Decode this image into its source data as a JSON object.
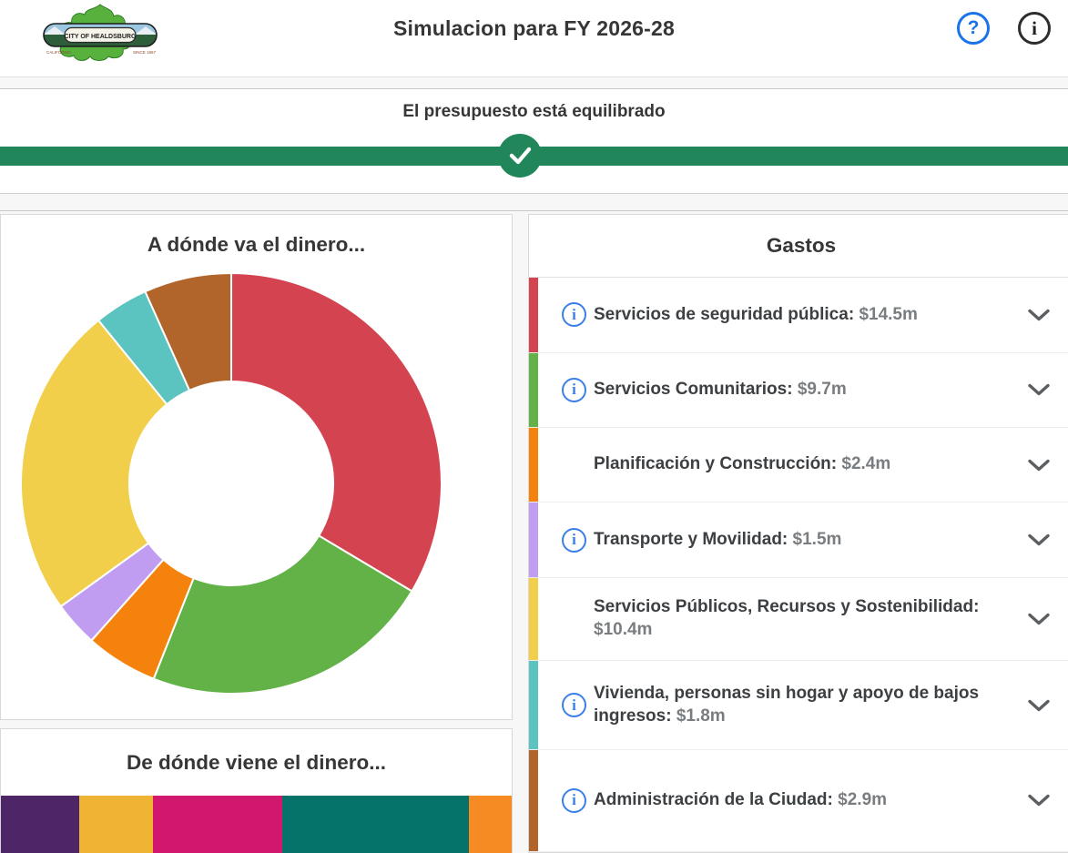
{
  "header": {
    "title": "Simulacion para FY 2026-28",
    "help_label": "?",
    "info_label": "i",
    "logo": {
      "badge_text": "CITY OF HEALDSBURG",
      "left_small_text": "CALIFORNIA",
      "right_small_text": "SINCE 1867"
    }
  },
  "status": {
    "message": "El presupuesto está equilibrado",
    "bar_color": "#21875a",
    "thumb_position_pct": 48.7
  },
  "spending_card": {
    "title": "A dónde va el dinero..."
  },
  "revenue_card": {
    "title": "De dónde viene el dinero..."
  },
  "expenses": {
    "title": "Gastos",
    "items": [
      {
        "label": "Servicios de seguridad pública:",
        "value": "$14.5m",
        "color": "#d44450",
        "has_info_icon": true
      },
      {
        "label": "Servicios Comunitarios:",
        "value": "$9.7m",
        "color": "#63b248",
        "has_info_icon": true
      },
      {
        "label": "Planificación y Construcción:",
        "value": "$2.4m",
        "color": "#f5820d",
        "has_info_icon": false
      },
      {
        "label": "Transporte y Movilidad:",
        "value": "$1.5m",
        "color": "#c19df1",
        "has_info_icon": true
      },
      {
        "label": "Servicios Públicos, Recursos y Sostenibilidad:",
        "value": "$10.4m",
        "color": "#f1cf4b",
        "has_info_icon": false
      },
      {
        "label": "Vivienda, personas sin hogar y apoyo de bajos ingresos:",
        "value": "$1.8m",
        "color": "#5bc4c0",
        "has_info_icon": true
      },
      {
        "label": "Administración de la Ciudad:",
        "value": "$2.9m",
        "color": "#b2652a",
        "has_info_icon": true
      }
    ]
  },
  "chart_data": [
    {
      "type": "pie",
      "subtype": "donut",
      "title": "A dónde va el dinero...",
      "labels": [
        "Servicios de seguridad pública",
        "Servicios Comunitarios",
        "Planificación y Construcción",
        "Transporte y Movilidad",
        "Servicios Públicos, Recursos y Sostenibilidad",
        "Vivienda, personas sin hogar y apoyo de bajos ingresos",
        "Administración de la Ciudad"
      ],
      "values": [
        14.5,
        9.7,
        2.4,
        1.5,
        10.4,
        1.8,
        2.9
      ],
      "unit": "millions USD",
      "colors": [
        "#d44450",
        "#63b248",
        "#f5820d",
        "#c19df1",
        "#f1cf4b",
        "#5bc4c0",
        "#b2652a"
      ],
      "start_angle_deg": 0,
      "direction": "clockwise",
      "inner_radius_ratio": 0.485,
      "legend_position": "none"
    },
    {
      "type": "bar",
      "subtype": "horizontal-stacked",
      "title": "De dónde viene el dinero...",
      "note": "segment labels/values not visible in screenshot; widths estimated as percent of bar",
      "segments": [
        {
          "percent": 15.3,
          "color": "#4e2667"
        },
        {
          "percent": 14.4,
          "color": "#f0b434"
        },
        {
          "percent": 25.4,
          "color": "#d2186e"
        },
        {
          "percent": 36.6,
          "color": "#06736b"
        },
        {
          "percent": 8.3,
          "color": "#f68b23"
        }
      ]
    }
  ]
}
